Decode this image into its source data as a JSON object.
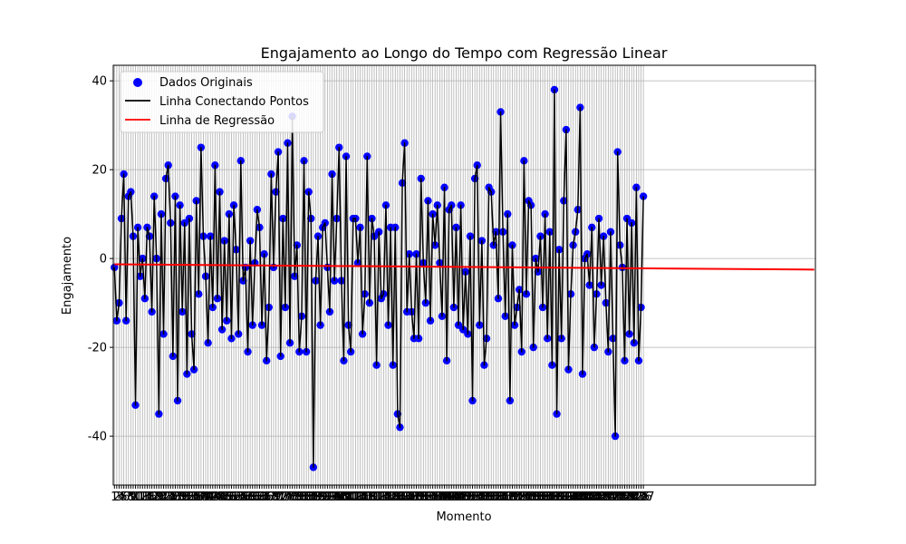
{
  "chart_data": {
    "type": "line",
    "title": "Engajamento ao Longo do Tempo com Regressão Linear",
    "xlabel": "Momento",
    "ylabel": "Engajamento",
    "xlim": [
      0.5,
      300.5
    ],
    "ylim": [
      -51,
      43.5
    ],
    "yticks": [
      -40,
      -20,
      0,
      20,
      40
    ],
    "grid": true,
    "legend_position": "top-left",
    "legend": [
      {
        "label": "Dados Originais",
        "kind": "scatter",
        "color": "#0000ff"
      },
      {
        "label": "Linha Conectando Pontos",
        "kind": "line",
        "color": "#000000"
      },
      {
        "label": "Linha de Regressão",
        "kind": "line",
        "color": "#ff0000"
      }
    ],
    "series": [
      {
        "name": "Dados Originais",
        "x_start": 1,
        "x_step": 1,
        "values": [
          -2,
          -14,
          -10,
          9,
          19,
          -14,
          14,
          15,
          5,
          -33,
          7,
          -4,
          0,
          -9,
          7,
          5,
          -12,
          14,
          0,
          -35,
          10,
          -17,
          18,
          21,
          8,
          -22,
          14,
          -32,
          12,
          -12,
          8,
          -26,
          9,
          -17,
          -25,
          13,
          -8,
          25,
          5,
          -4,
          -19,
          5,
          -11,
          21,
          -9,
          15,
          -16,
          4,
          -14,
          10,
          -18,
          12,
          2,
          -17,
          22,
          -5,
          -2,
          -21,
          4,
          -15,
          -1,
          11,
          7,
          -15,
          1,
          -23,
          -11,
          19,
          -2,
          15,
          24,
          -22,
          9,
          -11,
          26,
          -19,
          32,
          -4,
          3,
          -21,
          -13,
          22,
          -21,
          15,
          9,
          -47,
          -5,
          5,
          -15,
          7,
          8,
          -2,
          -12,
          19,
          -5,
          9,
          25,
          -5,
          -23,
          23,
          -15,
          -21,
          9,
          9,
          -1,
          7,
          -17,
          -8,
          23,
          -10,
          9,
          5,
          -24,
          6,
          -9,
          -8,
          12,
          -15,
          7,
          -24,
          7,
          -35,
          -38,
          17,
          26,
          -12,
          1,
          -12,
          -18,
          1,
          -18,
          18,
          -1,
          -10,
          13,
          -14,
          10,
          3,
          12,
          -1,
          -13,
          16,
          -23,
          11,
          12,
          -11,
          7,
          -15,
          12,
          -16,
          -3,
          -17,
          5,
          -32,
          18,
          21,
          -15,
          4,
          -24,
          -18,
          16,
          15,
          3,
          6,
          -9,
          33,
          6,
          -13,
          10,
          -32,
          3,
          -15,
          -11,
          -7,
          -21,
          22,
          -8,
          13,
          12,
          -20,
          0,
          -3,
          5,
          -11,
          10,
          -18,
          6,
          -24,
          38,
          -35,
          2,
          -18,
          13,
          29,
          -25,
          -8,
          3,
          6,
          11,
          34,
          -26,
          0,
          1,
          -6,
          7,
          -20,
          -8,
          9,
          -6,
          5,
          -10,
          -21,
          6,
          -18,
          -40,
          24,
          3,
          -2,
          -23,
          9,
          -17,
          8,
          -19,
          16,
          -23,
          -11,
          14
        ]
      },
      {
        "name": "Linha de Regressão",
        "x": [
          1,
          300
        ],
        "values": [
          -1.3,
          -2.5
        ]
      }
    ]
  }
}
